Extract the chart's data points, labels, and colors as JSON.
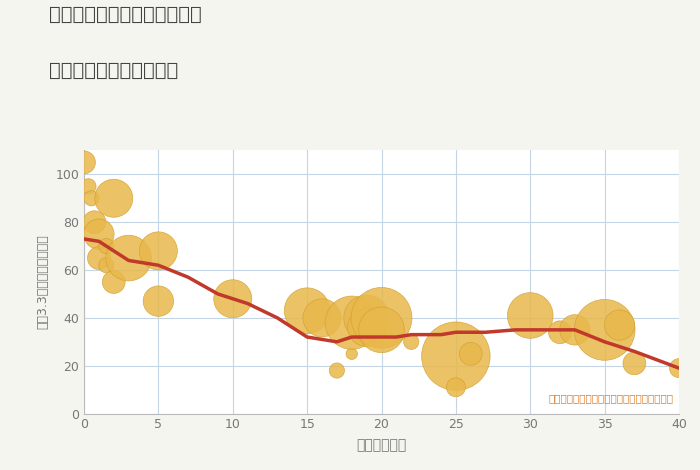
{
  "title_line1": "兵庫県川辺郡猪名川町差組の",
  "title_line2": "築年数別中古戸建て価格",
  "xlabel": "築年数（年）",
  "ylabel": "坪（3.3㎡）単価（万円）",
  "annotation": "円の大きさは、取引のあった物件面積を示す",
  "bg_color": "#f5f5f0",
  "plot_bg_color": "#ffffff",
  "grid_color": "#c5d5e5",
  "line_color": "#c0392b",
  "bubble_color": "#e8b84b",
  "bubble_edge_color": "#d4a030",
  "annotation_color": "#e07a20",
  "title_color": "#444444",
  "tick_color": "#777777",
  "xlim": [
    0,
    40
  ],
  "ylim": [
    0,
    110
  ],
  "xticks": [
    0,
    5,
    10,
    15,
    20,
    25,
    30,
    35,
    40
  ],
  "yticks": [
    0,
    20,
    40,
    60,
    80,
    100
  ],
  "scatter_x": [
    0.0,
    0.3,
    0.5,
    0.7,
    1.0,
    1.0,
    1.5,
    1.5,
    2.0,
    2.0,
    3.0,
    5.0,
    5.0,
    10.0,
    15.0,
    16.0,
    17.0,
    18.0,
    18.0,
    19.0,
    19.0,
    20.0,
    20.0,
    22.0,
    25.0,
    25.0,
    26.0,
    30.0,
    32.0,
    33.0,
    35.0,
    36.0,
    37.0,
    40.0
  ],
  "scatter_y": [
    105,
    95,
    90,
    80,
    75,
    65,
    70,
    62,
    90,
    55,
    65,
    68,
    47,
    48,
    43,
    40,
    18,
    25,
    38,
    40,
    36,
    40,
    35,
    30,
    24,
    11,
    25,
    41,
    34,
    35,
    35,
    37,
    21,
    19
  ],
  "scatter_size": [
    3,
    2,
    2,
    3,
    4,
    3,
    2,
    2,
    5,
    3,
    6,
    5,
    4,
    5,
    6,
    5,
    2,
    1.5,
    7,
    6,
    5,
    8,
    6,
    2,
    9,
    2.5,
    3,
    6,
    3,
    4,
    8,
    4,
    3,
    2.5
  ],
  "line_x": [
    0,
    1,
    2,
    3,
    5,
    7,
    9,
    11,
    13,
    15,
    16,
    17,
    18,
    19,
    20,
    21,
    22,
    24,
    25,
    27,
    29,
    31,
    33,
    35,
    37,
    40
  ],
  "line_y": [
    73,
    72,
    68,
    64,
    62,
    57,
    50,
    46,
    40,
    32,
    31,
    30,
    32,
    32,
    32,
    32,
    33,
    33,
    34,
    34,
    35,
    35,
    35,
    30,
    26,
    19
  ]
}
